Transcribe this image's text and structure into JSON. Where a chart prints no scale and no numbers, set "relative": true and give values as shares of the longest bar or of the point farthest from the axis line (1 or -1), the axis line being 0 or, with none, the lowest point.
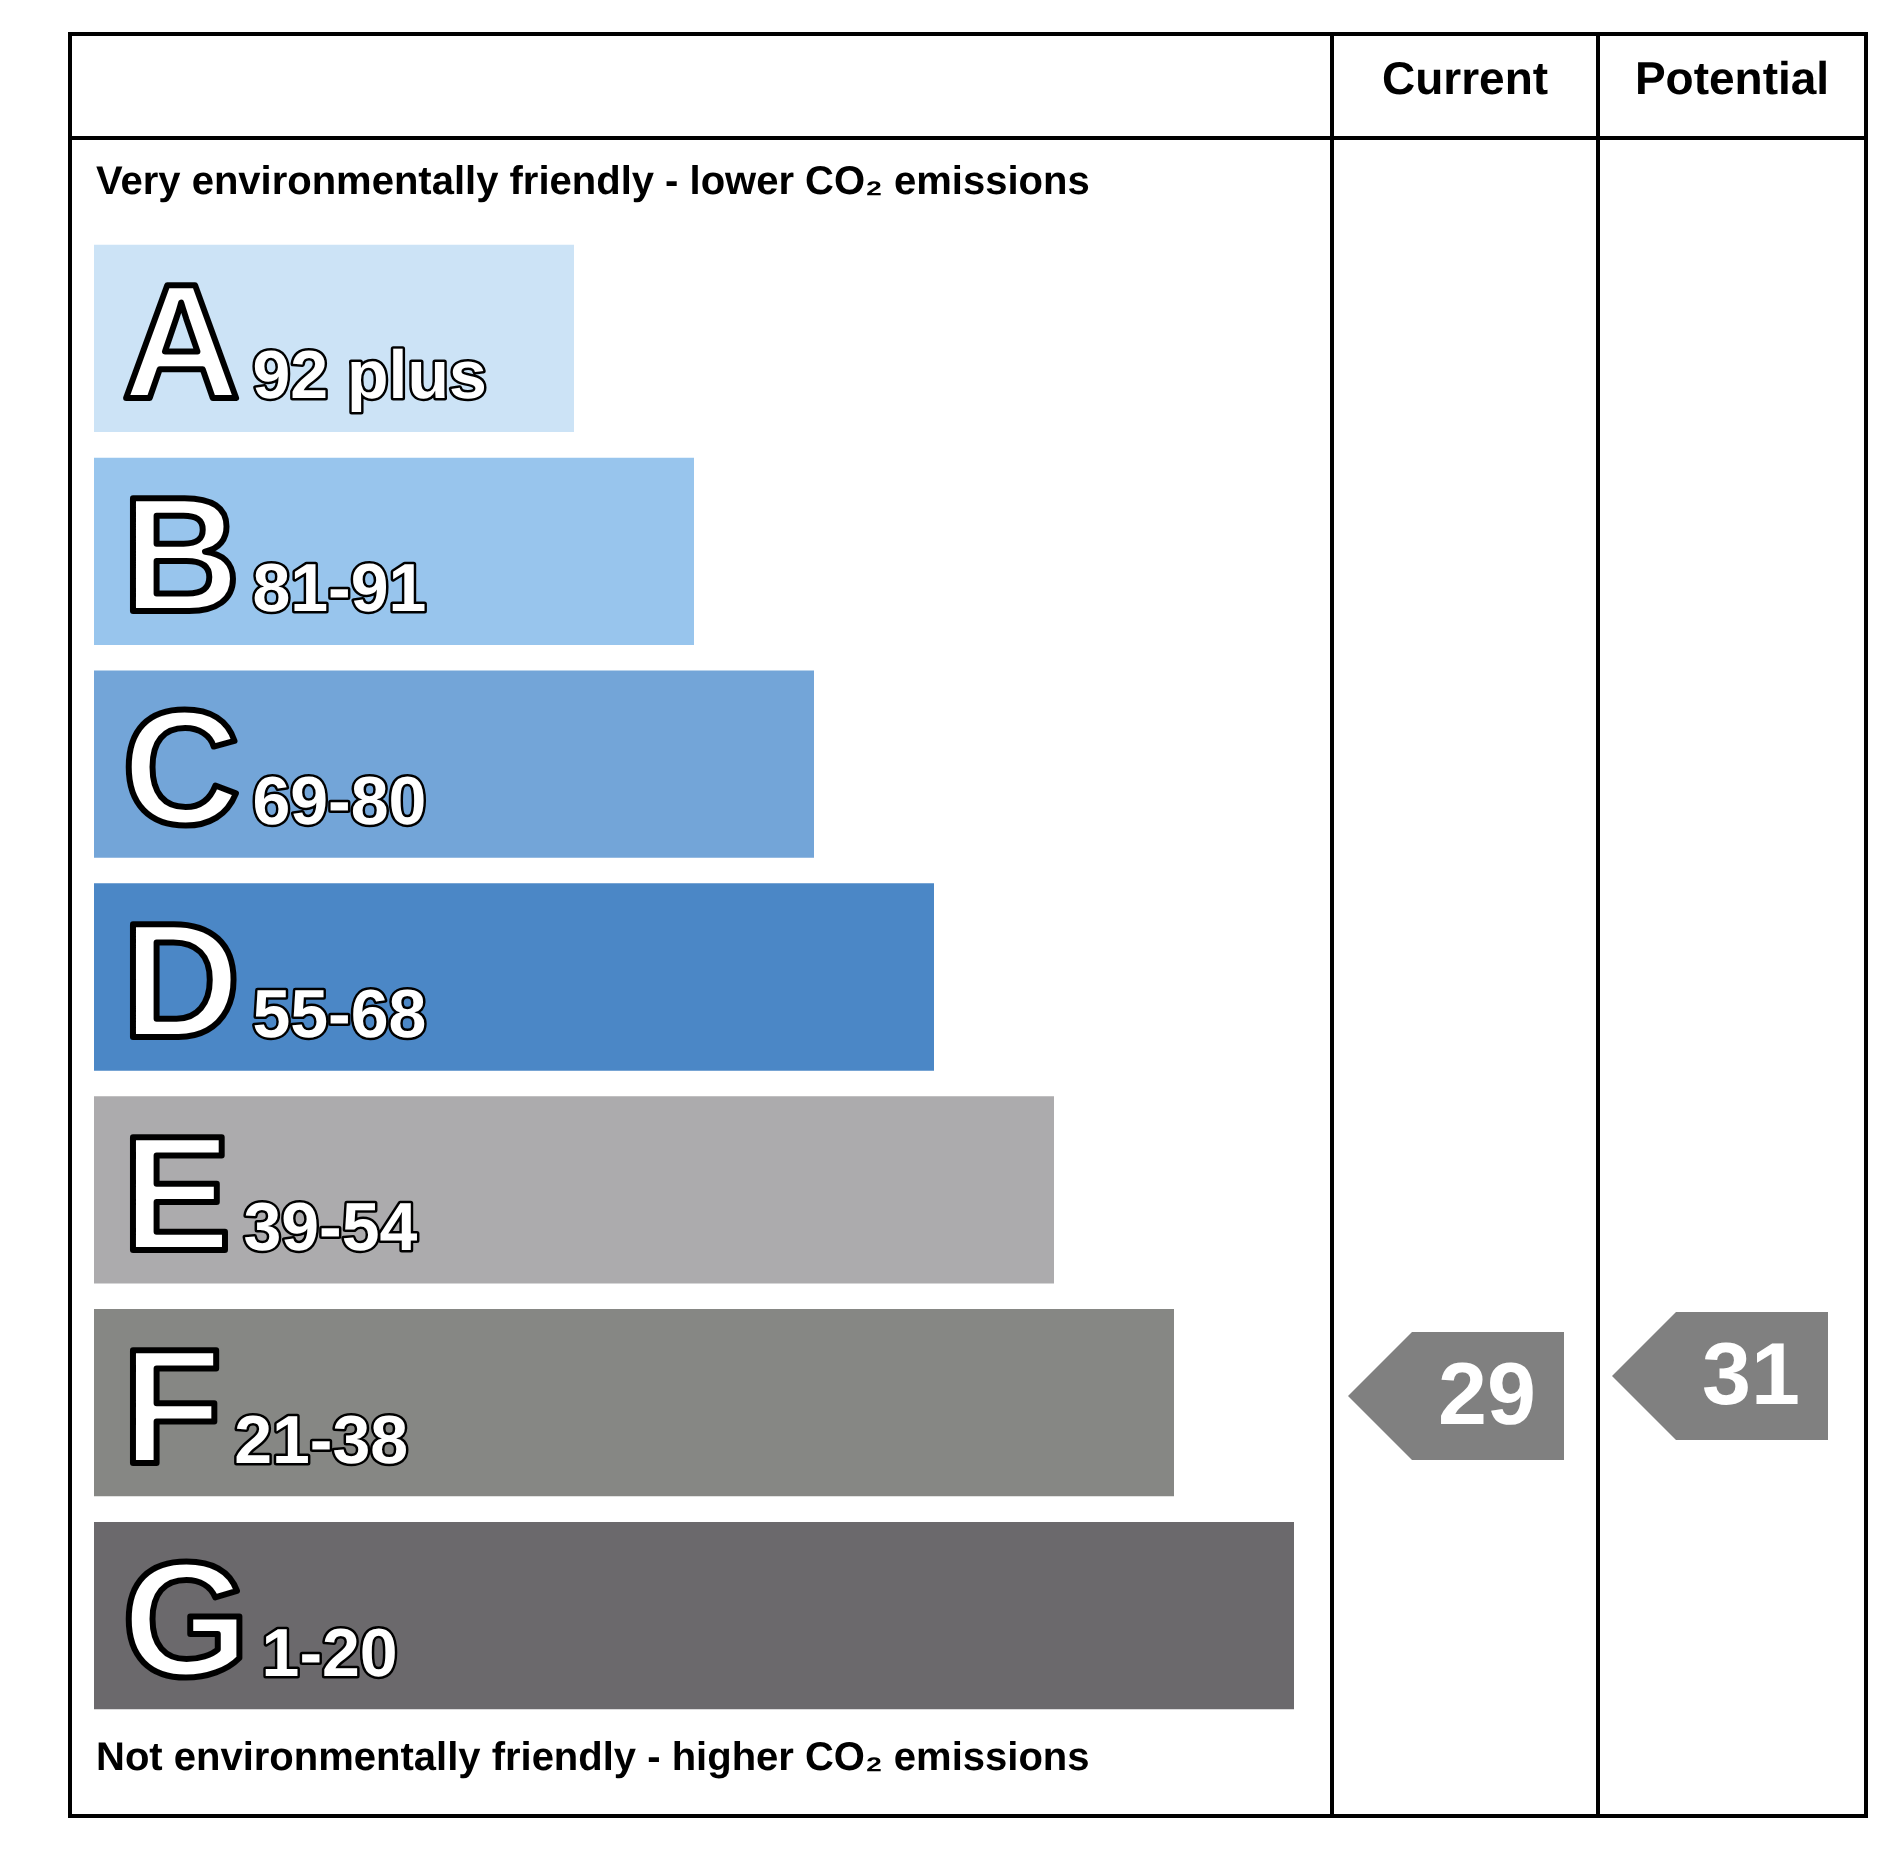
{
  "chart_data": {
    "type": "bar",
    "orientation": "horizontal",
    "relative": true,
    "title": "Very environmentally friendly - lower CO₂ emissions",
    "categories": [
      "A",
      "B",
      "C",
      "D",
      "E",
      "F",
      "G"
    ],
    "values": [
      0.4,
      0.5,
      0.6,
      0.7,
      0.8,
      0.9,
      1.0
    ],
    "colors": [
      "#cce3f6",
      "#98c5ed",
      "#73a5d8",
      "#4b87c6",
      "#acabad",
      "#868784",
      "#6b696c"
    ],
    "annotations": [
      "Not environmentally friendly - higher CO₂ emissions",
      "Current",
      "Potential",
      {
        "text": "92 plus",
        "y": "A"
      },
      {
        "text": "81-91",
        "y": "B"
      },
      {
        "text": "69-80",
        "y": "C"
      },
      {
        "text": "55-68",
        "y": "D"
      },
      {
        "text": "39-54",
        "y": "E"
      },
      {
        "text": "21-38",
        "y": "F"
      },
      {
        "text": "1-20",
        "y": "G"
      },
      "29",
      "31"
    ],
    "legend": false
  }
}
